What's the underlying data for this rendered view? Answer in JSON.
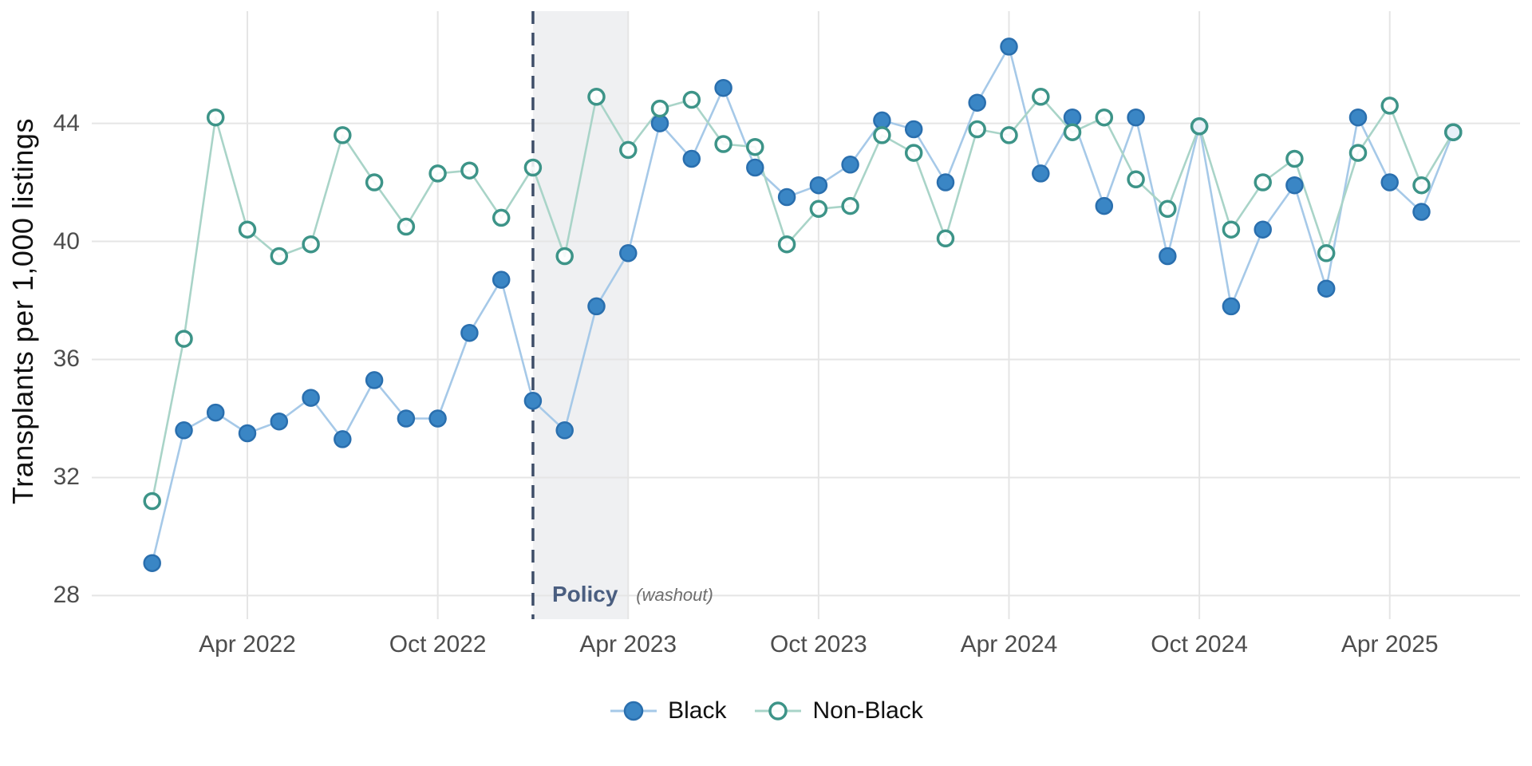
{
  "chart_data": {
    "type": "line",
    "title": "",
    "xlabel": "",
    "ylabel": "Transplants per 1,000 listings",
    "ylim": [
      27.2,
      47.8
    ],
    "y_ticks": [
      28,
      32,
      36,
      40,
      44
    ],
    "grid": "major-only",
    "legend_position": "bottom-center",
    "x_months": [
      "2022-01",
      "2022-02",
      "2022-03",
      "2022-04",
      "2022-05",
      "2022-06",
      "2022-07",
      "2022-08",
      "2022-09",
      "2022-10",
      "2022-11",
      "2022-12",
      "2023-01",
      "2023-02",
      "2023-03",
      "2023-04",
      "2023-05",
      "2023-06",
      "2023-07",
      "2023-08",
      "2023-09",
      "2023-10",
      "2023-11",
      "2023-12",
      "2024-01",
      "2024-02",
      "2024-03",
      "2024-04",
      "2024-05",
      "2024-06",
      "2024-07",
      "2024-08",
      "2024-09",
      "2024-10",
      "2024-11",
      "2024-12",
      "2025-01",
      "2025-02",
      "2025-03",
      "2025-04",
      "2025-05",
      "2025-06"
    ],
    "x_ticks": [
      {
        "label": "Apr 2022",
        "month_index": 3
      },
      {
        "label": "Oct 2022",
        "month_index": 9
      },
      {
        "label": "Apr 2023",
        "month_index": 15
      },
      {
        "label": "Oct 2023",
        "month_index": 21
      },
      {
        "label": "Apr 2024",
        "month_index": 27
      },
      {
        "label": "Oct 2024",
        "month_index": 33
      },
      {
        "label": "Apr 2025",
        "month_index": 39
      }
    ],
    "series": [
      {
        "name": "Black",
        "marker": "filled-circle",
        "point_fill": "#3a86c5",
        "point_stroke": "#2a6fae",
        "line_color": "#a6c9e8",
        "values": [
          29.1,
          33.6,
          34.2,
          33.5,
          33.9,
          34.7,
          33.3,
          35.3,
          34.0,
          34.0,
          36.9,
          38.7,
          34.6,
          33.6,
          37.8,
          39.6,
          44.0,
          42.8,
          45.2,
          42.5,
          41.5,
          41.9,
          42.6,
          44.1,
          43.8,
          42.0,
          44.7,
          46.6,
          42.3,
          44.2,
          41.2,
          44.2,
          39.5,
          43.9,
          37.8,
          40.4,
          41.9,
          38.4,
          44.2,
          42.0,
          41.0,
          43.7
        ]
      },
      {
        "name": "Non-Black",
        "marker": "open-circle",
        "point_fill": "#ffffff",
        "point_stroke": "#3d9488",
        "line_color": "#a9d4c8",
        "values": [
          31.2,
          36.7,
          44.2,
          40.4,
          39.5,
          39.9,
          43.6,
          42.0,
          40.5,
          42.3,
          42.4,
          40.8,
          42.5,
          39.5,
          44.9,
          43.1,
          44.5,
          44.8,
          43.3,
          43.2,
          39.9,
          41.1,
          41.2,
          43.6,
          43.0,
          40.1,
          43.8,
          43.6,
          44.9,
          43.7,
          44.2,
          42.1,
          41.1,
          43.9,
          40.4,
          42.0,
          42.8,
          39.6,
          43.0,
          44.6,
          41.9,
          43.7
        ]
      }
    ],
    "annotations": {
      "policy_label": "Policy",
      "washout_label": "(washout)",
      "policy_month_index": 12,
      "washout_end_month_index": 15
    }
  },
  "legend": {
    "items": [
      {
        "label": "Black"
      },
      {
        "label": "Non-Black"
      }
    ]
  },
  "colors": {
    "grid": "#e5e5e5",
    "washout_fill": "#9aa3ad",
    "washout_opacity": "0.16",
    "policy_line": "#3d4d68",
    "tick_text": "#4d4d4d",
    "axis_title": "#111111"
  }
}
